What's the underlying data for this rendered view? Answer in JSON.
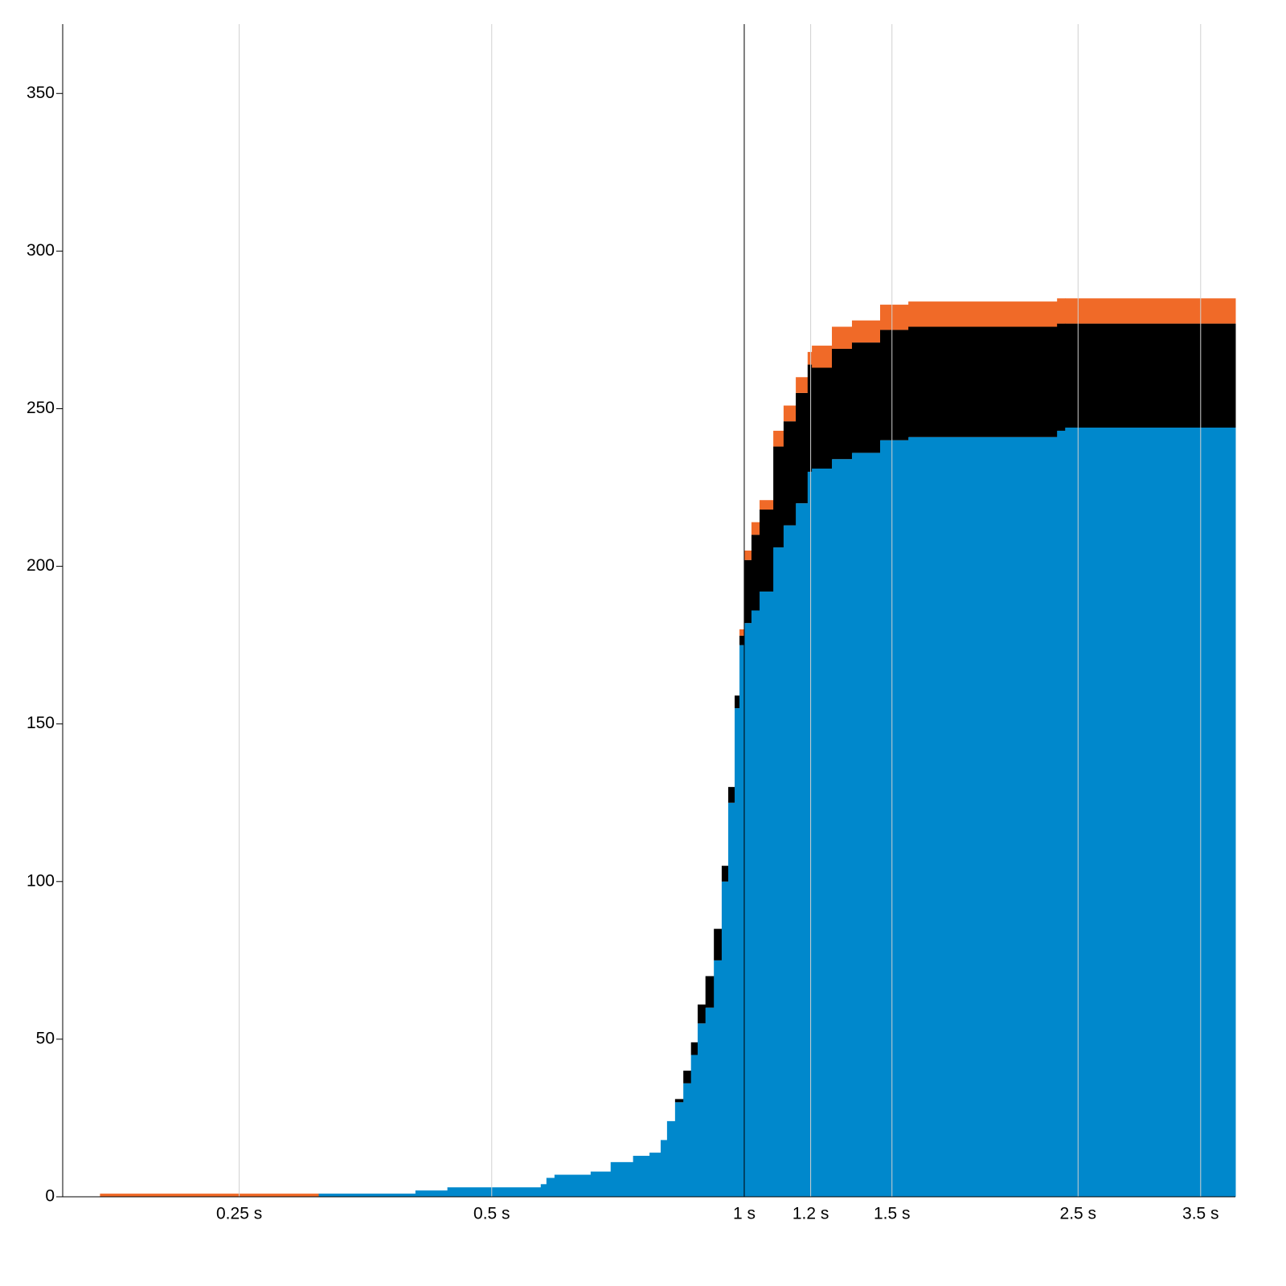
{
  "chart_data": {
    "type": "stacked-step-area",
    "x_scale": "log",
    "xlim": [
      0.154,
      3.85
    ],
    "xticks": [
      {
        "value": 0.25,
        "label": "0.25 s"
      },
      {
        "value": 0.5,
        "label": "0.5 s"
      },
      {
        "value": 1,
        "label": "1 s"
      },
      {
        "value": 1.2,
        "label": "1.2 s"
      },
      {
        "value": 1.5,
        "label": "1.5 s"
      },
      {
        "value": 2.5,
        "label": "2.5 s"
      },
      {
        "value": 3.5,
        "label": "3.5 s"
      }
    ],
    "ylim": [
      0,
      372
    ],
    "yticks": [
      0,
      50,
      100,
      150,
      200,
      250,
      300,
      350
    ],
    "grid": true,
    "x": [
      0.1706,
      0.311,
      0.4055,
      0.4427,
      0.572,
      0.581,
      0.594,
      0.656,
      0.693,
      0.737,
      0.771,
      0.795,
      0.809,
      0.827,
      0.846,
      0.864,
      0.88,
      0.899,
      0.92,
      0.94,
      0.957,
      0.974,
      0.987,
      1,
      1.02,
      1.043,
      1.083,
      1.114,
      1.152,
      1.19,
      1.204,
      1.272,
      1.344,
      1.452,
      1.569,
      2.36,
      2.413
    ],
    "series": [
      {
        "color": "#0088cc",
        "values": [
          0,
          1,
          2,
          3,
          4,
          6,
          7,
          8,
          11,
          13,
          14,
          18,
          24,
          30,
          36,
          45,
          55,
          60,
          75,
          100,
          125,
          155,
          175,
          182,
          186,
          192,
          206,
          213,
          220,
          230,
          231,
          234,
          236,
          240,
          241,
          243,
          244
        ]
      },
      {
        "color": "#000000",
        "values": [
          0,
          0,
          0,
          0,
          0,
          0,
          0,
          0,
          0,
          0,
          0,
          0,
          0,
          1,
          4,
          4,
          6,
          10,
          10,
          5,
          5,
          4,
          3,
          20,
          24,
          26,
          32,
          33,
          35,
          34,
          32,
          35,
          35,
          35,
          35,
          34,
          33
        ]
      },
      {
        "color": "#f06a28",
        "values": [
          1,
          0,
          0,
          0,
          0,
          0,
          0,
          0,
          0,
          0,
          0,
          0,
          0,
          0,
          0,
          0,
          0,
          0,
          0,
          0,
          0,
          0,
          2,
          3,
          4,
          3,
          5,
          5,
          5,
          4,
          7,
          7,
          7,
          8,
          8,
          8,
          8
        ]
      }
    ]
  }
}
